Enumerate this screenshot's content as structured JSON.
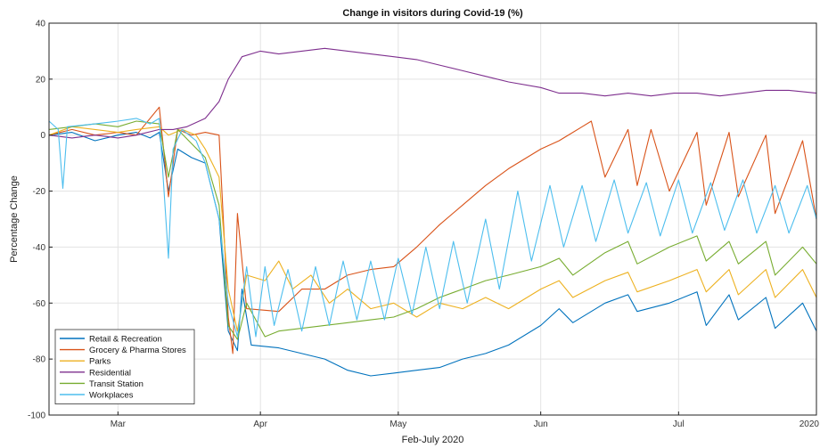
{
  "chart_data": {
    "type": "line",
    "title": "Change in visitors during Covid-19 (%)",
    "xlabel": "Feb-July 2020",
    "ylabel": "Percentage Change",
    "ylim": [
      -100,
      40
    ],
    "yticks": [
      40,
      20,
      0,
      -20,
      -40,
      -60,
      -80,
      -100
    ],
    "x_start": "2020-02-15",
    "x_end": "2020-07-31",
    "xticks": [
      {
        "date": "2020-03-01",
        "label": "Mar"
      },
      {
        "date": "2020-04-01",
        "label": "Apr"
      },
      {
        "date": "2020-05-01",
        "label": "May"
      },
      {
        "date": "2020-06-01",
        "label": "Jun"
      },
      {
        "date": "2020-07-01",
        "label": "Jul"
      },
      {
        "date": "2020-08-01",
        "label": "2020"
      }
    ],
    "grid": true,
    "legend_position": "bottom-left",
    "series": [
      {
        "name": "Retail & Recreation",
        "color": "#0072BD",
        "points": [
          [
            "2020-02-15",
            0
          ],
          [
            "2020-02-20",
            1
          ],
          [
            "2020-02-25",
            -2
          ],
          [
            "2020-03-01",
            0
          ],
          [
            "2020-03-05",
            1
          ],
          [
            "2020-03-08",
            -1
          ],
          [
            "2020-03-10",
            1
          ],
          [
            "2020-03-12",
            -20
          ],
          [
            "2020-03-14",
            -5
          ],
          [
            "2020-03-17",
            -8
          ],
          [
            "2020-03-20",
            -10
          ],
          [
            "2020-03-23",
            -30
          ],
          [
            "2020-03-25",
            -70
          ],
          [
            "2020-03-27",
            -77
          ],
          [
            "2020-03-28",
            -55
          ],
          [
            "2020-03-30",
            -75
          ],
          [
            "2020-04-05",
            -76
          ],
          [
            "2020-04-10",
            -78
          ],
          [
            "2020-04-15",
            -80
          ],
          [
            "2020-04-20",
            -84
          ],
          [
            "2020-04-25",
            -86
          ],
          [
            "2020-04-30",
            -85
          ],
          [
            "2020-05-05",
            -84
          ],
          [
            "2020-05-10",
            -83
          ],
          [
            "2020-05-15",
            -80
          ],
          [
            "2020-05-20",
            -78
          ],
          [
            "2020-05-25",
            -75
          ],
          [
            "2020-06-01",
            -68
          ],
          [
            "2020-06-05",
            -62
          ],
          [
            "2020-06-08",
            -67
          ],
          [
            "2020-06-15",
            -60
          ],
          [
            "2020-06-20",
            -57
          ],
          [
            "2020-06-22",
            -63
          ],
          [
            "2020-06-29",
            -60
          ],
          [
            "2020-07-05",
            -56
          ],
          [
            "2020-07-07",
            -68
          ],
          [
            "2020-07-12",
            -57
          ],
          [
            "2020-07-14",
            -66
          ],
          [
            "2020-07-20",
            -58
          ],
          [
            "2020-07-22",
            -69
          ],
          [
            "2020-07-28",
            -60
          ],
          [
            "2020-07-31",
            -70
          ]
        ]
      },
      {
        "name": "Grocery & Pharma Stores",
        "color": "#D95319",
        "points": [
          [
            "2020-02-15",
            0
          ],
          [
            "2020-02-20",
            2
          ],
          [
            "2020-02-25",
            0
          ],
          [
            "2020-03-01",
            1
          ],
          [
            "2020-03-05",
            0
          ],
          [
            "2020-03-10",
            10
          ],
          [
            "2020-03-12",
            -22
          ],
          [
            "2020-03-14",
            2
          ],
          [
            "2020-03-17",
            0
          ],
          [
            "2020-03-20",
            1
          ],
          [
            "2020-03-23",
            0
          ],
          [
            "2020-03-25",
            -65
          ],
          [
            "2020-03-26",
            -78
          ],
          [
            "2020-03-27",
            -28
          ],
          [
            "2020-03-29",
            -62
          ],
          [
            "2020-04-05",
            -63
          ],
          [
            "2020-04-10",
            -55
          ],
          [
            "2020-04-15",
            -55
          ],
          [
            "2020-04-20",
            -50
          ],
          [
            "2020-04-25",
            -48
          ],
          [
            "2020-04-30",
            -47
          ],
          [
            "2020-05-05",
            -40
          ],
          [
            "2020-05-10",
            -32
          ],
          [
            "2020-05-15",
            -25
          ],
          [
            "2020-05-20",
            -18
          ],
          [
            "2020-05-25",
            -12
          ],
          [
            "2020-06-01",
            -5
          ],
          [
            "2020-06-05",
            -2
          ],
          [
            "2020-06-10",
            3
          ],
          [
            "2020-06-12",
            5
          ],
          [
            "2020-06-15",
            -15
          ],
          [
            "2020-06-20",
            2
          ],
          [
            "2020-06-22",
            -18
          ],
          [
            "2020-06-25",
            2
          ],
          [
            "2020-06-29",
            -20
          ],
          [
            "2020-07-05",
            1
          ],
          [
            "2020-07-07",
            -25
          ],
          [
            "2020-07-12",
            1
          ],
          [
            "2020-07-14",
            -22
          ],
          [
            "2020-07-20",
            0
          ],
          [
            "2020-07-22",
            -28
          ],
          [
            "2020-07-28",
            -2
          ],
          [
            "2020-07-31",
            -30
          ]
        ]
      },
      {
        "name": "Parks",
        "color": "#EDB120",
        "points": [
          [
            "2020-02-15",
            0
          ],
          [
            "2020-02-20",
            3
          ],
          [
            "2020-02-25",
            2
          ],
          [
            "2020-03-01",
            1
          ],
          [
            "2020-03-05",
            2
          ],
          [
            "2020-03-10",
            3
          ],
          [
            "2020-03-12",
            0
          ],
          [
            "2020-03-15",
            2
          ],
          [
            "2020-03-18",
            0
          ],
          [
            "2020-03-20",
            -5
          ],
          [
            "2020-03-23",
            -15
          ],
          [
            "2020-03-25",
            -55
          ],
          [
            "2020-03-27",
            -70
          ],
          [
            "2020-03-29",
            -50
          ],
          [
            "2020-04-02",
            -52
          ],
          [
            "2020-04-05",
            -45
          ],
          [
            "2020-04-08",
            -55
          ],
          [
            "2020-04-12",
            -50
          ],
          [
            "2020-04-16",
            -60
          ],
          [
            "2020-04-20",
            -55
          ],
          [
            "2020-04-25",
            -62
          ],
          [
            "2020-04-30",
            -60
          ],
          [
            "2020-05-05",
            -65
          ],
          [
            "2020-05-10",
            -60
          ],
          [
            "2020-05-15",
            -62
          ],
          [
            "2020-05-20",
            -58
          ],
          [
            "2020-05-25",
            -62
          ],
          [
            "2020-06-01",
            -55
          ],
          [
            "2020-06-05",
            -52
          ],
          [
            "2020-06-08",
            -58
          ],
          [
            "2020-06-15",
            -52
          ],
          [
            "2020-06-20",
            -49
          ],
          [
            "2020-06-22",
            -56
          ],
          [
            "2020-06-29",
            -52
          ],
          [
            "2020-07-05",
            -48
          ],
          [
            "2020-07-07",
            -56
          ],
          [
            "2020-07-12",
            -48
          ],
          [
            "2020-07-14",
            -57
          ],
          [
            "2020-07-20",
            -48
          ],
          [
            "2020-07-22",
            -58
          ],
          [
            "2020-07-28",
            -48
          ],
          [
            "2020-07-31",
            -58
          ]
        ]
      },
      {
        "name": "Residential",
        "color": "#7E2F8E",
        "points": [
          [
            "2020-02-15",
            0
          ],
          [
            "2020-02-20",
            -1
          ],
          [
            "2020-02-25",
            0
          ],
          [
            "2020-03-01",
            -1
          ],
          [
            "2020-03-05",
            0
          ],
          [
            "2020-03-10",
            2
          ],
          [
            "2020-03-13",
            2
          ],
          [
            "2020-03-16",
            3
          ],
          [
            "2020-03-20",
            6
          ],
          [
            "2020-03-23",
            12
          ],
          [
            "2020-03-25",
            20
          ],
          [
            "2020-03-28",
            28
          ],
          [
            "2020-04-01",
            30
          ],
          [
            "2020-04-05",
            29
          ],
          [
            "2020-04-10",
            30
          ],
          [
            "2020-04-15",
            31
          ],
          [
            "2020-04-20",
            30
          ],
          [
            "2020-04-25",
            29
          ],
          [
            "2020-04-30",
            28
          ],
          [
            "2020-05-05",
            27
          ],
          [
            "2020-05-10",
            25
          ],
          [
            "2020-05-15",
            23
          ],
          [
            "2020-05-20",
            21
          ],
          [
            "2020-05-25",
            19
          ],
          [
            "2020-06-01",
            17
          ],
          [
            "2020-06-05",
            15
          ],
          [
            "2020-06-10",
            15
          ],
          [
            "2020-06-15",
            14
          ],
          [
            "2020-06-20",
            15
          ],
          [
            "2020-06-25",
            14
          ],
          [
            "2020-06-30",
            15
          ],
          [
            "2020-07-05",
            15
          ],
          [
            "2020-07-10",
            14
          ],
          [
            "2020-07-15",
            15
          ],
          [
            "2020-07-20",
            16
          ],
          [
            "2020-07-25",
            16
          ],
          [
            "2020-07-31",
            15
          ]
        ]
      },
      {
        "name": "Transit Station",
        "color": "#77AC30",
        "points": [
          [
            "2020-02-15",
            2
          ],
          [
            "2020-02-20",
            3
          ],
          [
            "2020-02-25",
            4
          ],
          [
            "2020-03-01",
            3
          ],
          [
            "2020-03-05",
            5
          ],
          [
            "2020-03-10",
            4
          ],
          [
            "2020-03-12",
            -15
          ],
          [
            "2020-03-14",
            2
          ],
          [
            "2020-03-17",
            -3
          ],
          [
            "2020-03-20",
            -8
          ],
          [
            "2020-03-23",
            -25
          ],
          [
            "2020-03-25",
            -68
          ],
          [
            "2020-03-27",
            -73
          ],
          [
            "2020-03-29",
            -60
          ],
          [
            "2020-04-02",
            -72
          ],
          [
            "2020-04-05",
            -70
          ],
          [
            "2020-04-10",
            -69
          ],
          [
            "2020-04-15",
            -68
          ],
          [
            "2020-04-20",
            -67
          ],
          [
            "2020-04-25",
            -66
          ],
          [
            "2020-04-30",
            -65
          ],
          [
            "2020-05-05",
            -62
          ],
          [
            "2020-05-10",
            -58
          ],
          [
            "2020-05-15",
            -55
          ],
          [
            "2020-05-20",
            -52
          ],
          [
            "2020-05-25",
            -50
          ],
          [
            "2020-06-01",
            -47
          ],
          [
            "2020-06-05",
            -44
          ],
          [
            "2020-06-08",
            -50
          ],
          [
            "2020-06-15",
            -42
          ],
          [
            "2020-06-20",
            -38
          ],
          [
            "2020-06-22",
            -46
          ],
          [
            "2020-06-29",
            -40
          ],
          [
            "2020-07-05",
            -36
          ],
          [
            "2020-07-07",
            -45
          ],
          [
            "2020-07-12",
            -38
          ],
          [
            "2020-07-14",
            -46
          ],
          [
            "2020-07-20",
            -38
          ],
          [
            "2020-07-22",
            -50
          ],
          [
            "2020-07-28",
            -40
          ],
          [
            "2020-07-31",
            -46
          ]
        ]
      },
      {
        "name": "Workplaces",
        "color": "#4DBEEE",
        "points": [
          [
            "2020-02-15",
            5
          ],
          [
            "2020-02-17",
            2
          ],
          [
            "2020-02-18",
            -19
          ],
          [
            "2020-02-19",
            3
          ],
          [
            "2020-02-25",
            4
          ],
          [
            "2020-03-01",
            5
          ],
          [
            "2020-03-05",
            6
          ],
          [
            "2020-03-08",
            4
          ],
          [
            "2020-03-10",
            6
          ],
          [
            "2020-03-12",
            -44
          ],
          [
            "2020-03-13",
            -5
          ],
          [
            "2020-03-15",
            2
          ],
          [
            "2020-03-18",
            -2
          ],
          [
            "2020-03-20",
            -10
          ],
          [
            "2020-03-23",
            -30
          ],
          [
            "2020-03-25",
            -60
          ],
          [
            "2020-03-27",
            -72
          ],
          [
            "2020-03-29",
            -47
          ],
          [
            "2020-03-31",
            -72
          ],
          [
            "2020-04-02",
            -47
          ],
          [
            "2020-04-04",
            -68
          ],
          [
            "2020-04-07",
            -48
          ],
          [
            "2020-04-10",
            -70
          ],
          [
            "2020-04-13",
            -47
          ],
          [
            "2020-04-16",
            -68
          ],
          [
            "2020-04-19",
            -45
          ],
          [
            "2020-04-22",
            -66
          ],
          [
            "2020-04-25",
            -45
          ],
          [
            "2020-04-28",
            -66
          ],
          [
            "2020-05-01",
            -44
          ],
          [
            "2020-05-04",
            -64
          ],
          [
            "2020-05-07",
            -40
          ],
          [
            "2020-05-10",
            -62
          ],
          [
            "2020-05-13",
            -38
          ],
          [
            "2020-05-16",
            -60
          ],
          [
            "2020-05-20",
            -30
          ],
          [
            "2020-05-23",
            -55
          ],
          [
            "2020-05-27",
            -20
          ],
          [
            "2020-05-30",
            -45
          ],
          [
            "2020-06-03",
            -18
          ],
          [
            "2020-06-06",
            -40
          ],
          [
            "2020-06-10",
            -18
          ],
          [
            "2020-06-13",
            -38
          ],
          [
            "2020-06-17",
            -16
          ],
          [
            "2020-06-20",
            -35
          ],
          [
            "2020-06-24",
            -17
          ],
          [
            "2020-06-27",
            -36
          ],
          [
            "2020-07-01",
            -16
          ],
          [
            "2020-07-04",
            -35
          ],
          [
            "2020-07-08",
            -17
          ],
          [
            "2020-07-11",
            -34
          ],
          [
            "2020-07-15",
            -16
          ],
          [
            "2020-07-18",
            -35
          ],
          [
            "2020-07-22",
            -18
          ],
          [
            "2020-07-25",
            -35
          ],
          [
            "2020-07-29",
            -18
          ],
          [
            "2020-07-31",
            -30
          ]
        ]
      }
    ]
  }
}
